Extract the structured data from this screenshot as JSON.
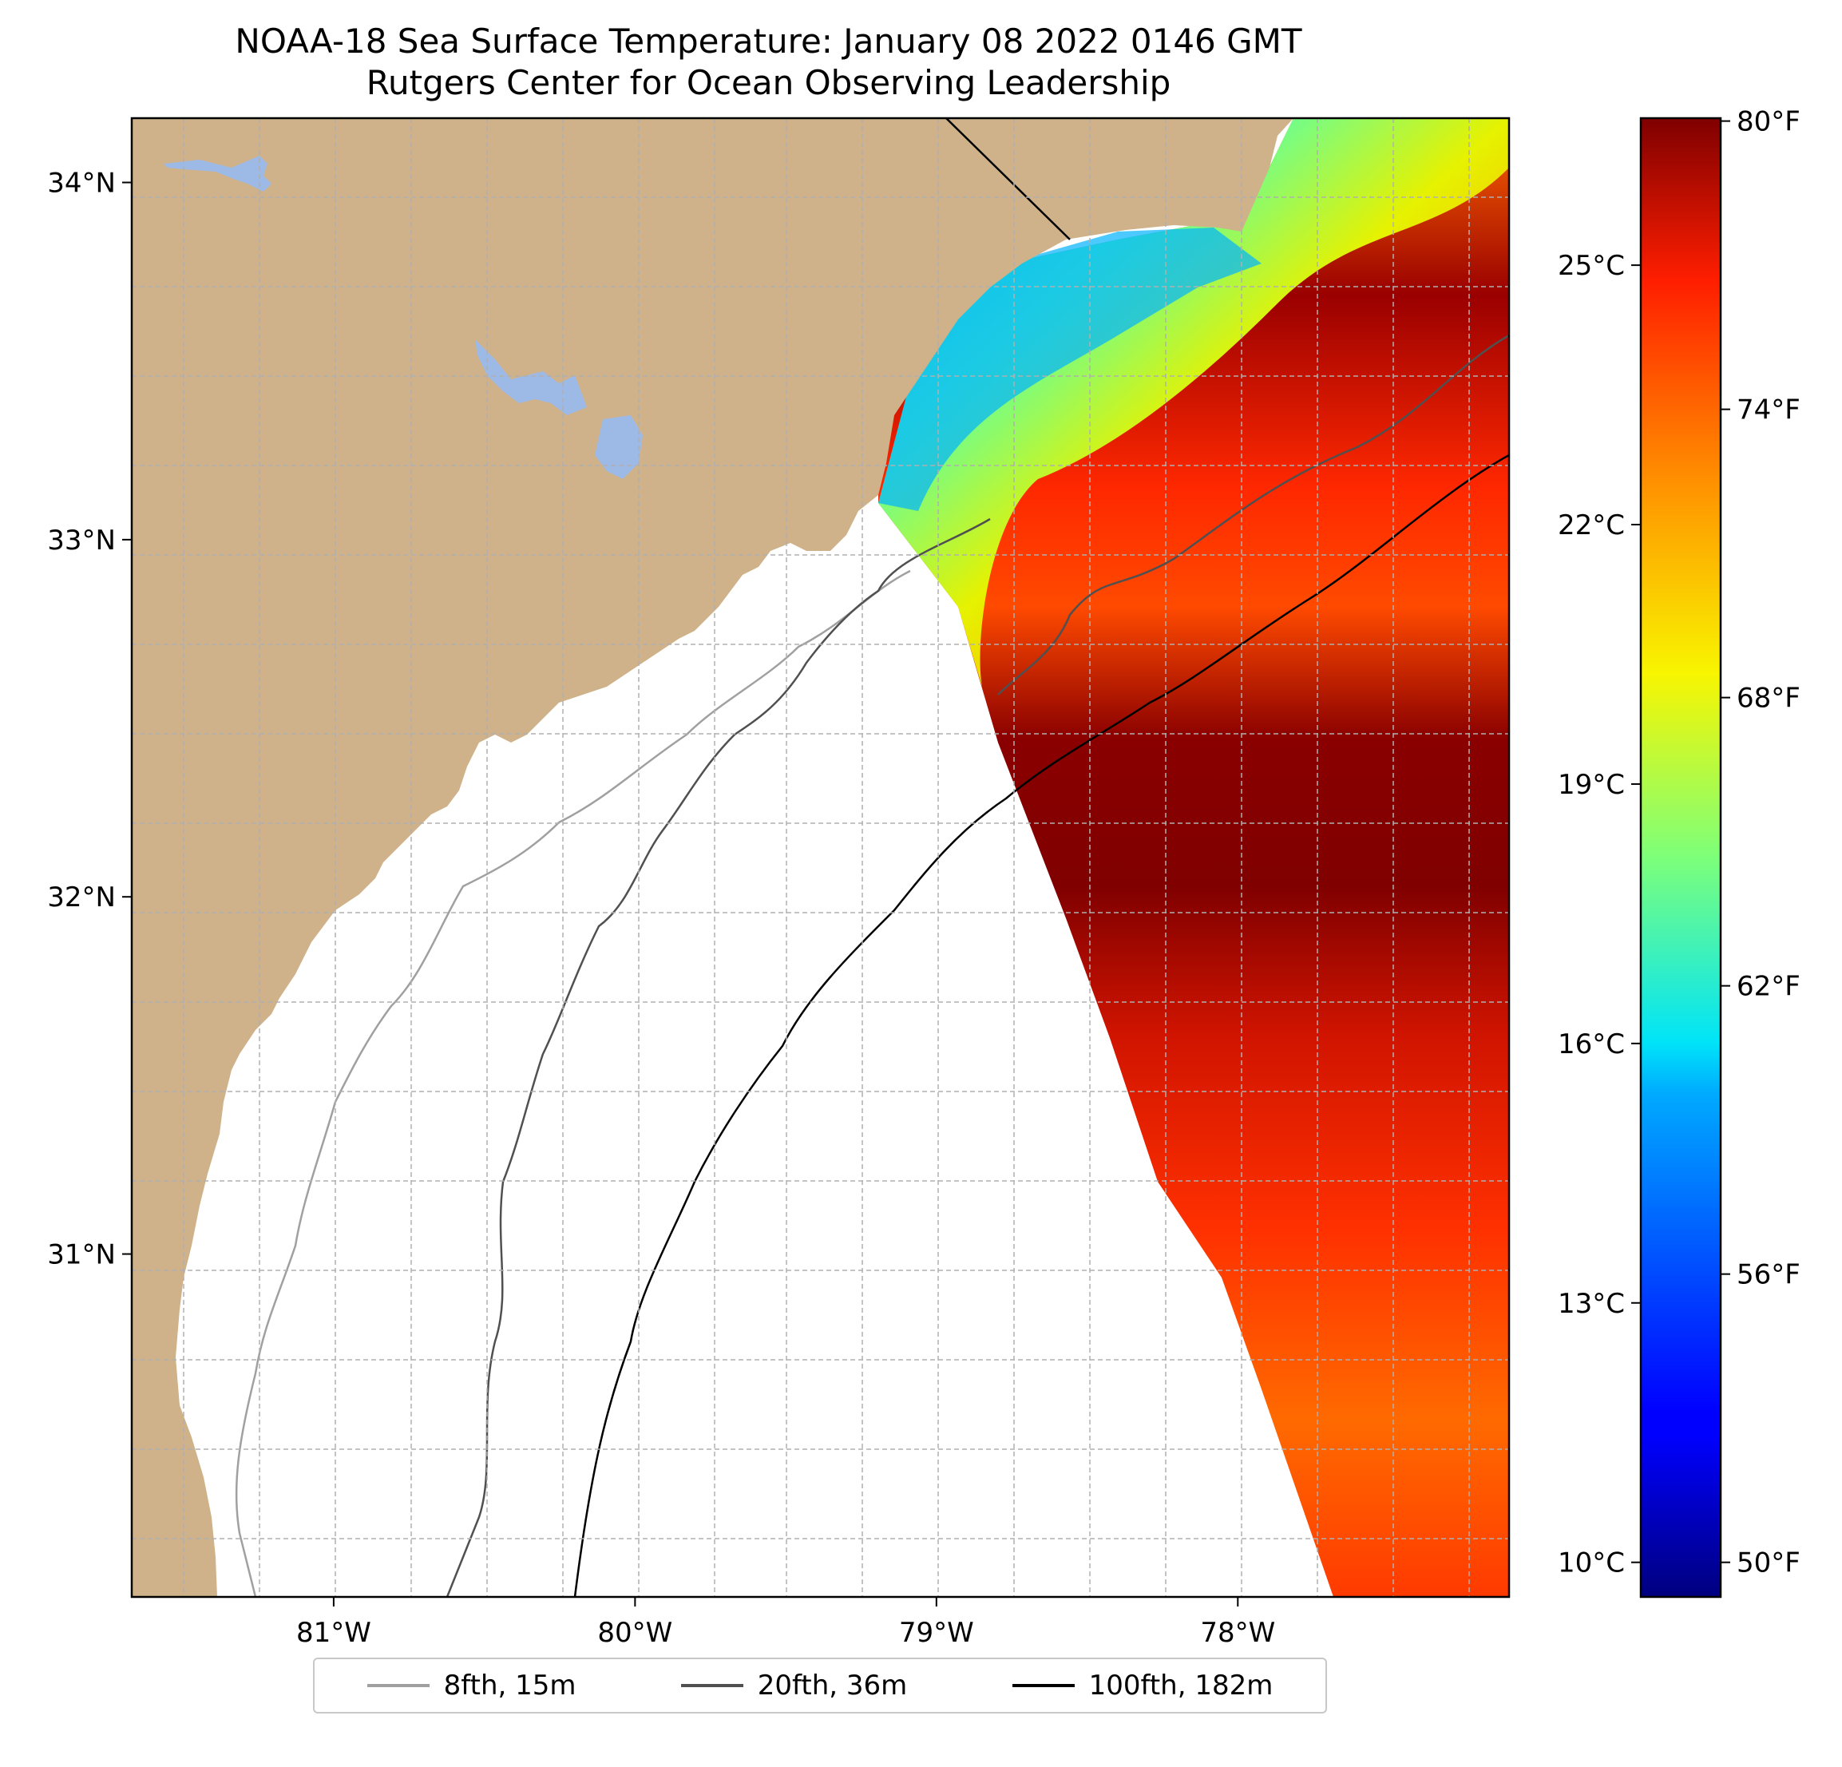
{
  "title": {
    "line1": "NOAA-18 Sea Surface Temperature: January 08 2022 0146 GMT",
    "line2": "Rutgers Center for Ocean Observing Leadership"
  },
  "map": {
    "lon_range": [
      -81.67,
      -77.1
    ],
    "lat_range": [
      30.04,
      34.18
    ],
    "lon_ticks": [
      -81,
      -80,
      -79,
      -78
    ],
    "lon_tick_labels": [
      "81°W",
      "80°W",
      "79°W",
      "78°W"
    ],
    "lat_ticks": [
      31,
      32,
      33,
      34
    ],
    "lat_tick_labels": [
      "31°N",
      "32°N",
      "33°N",
      "34°N"
    ],
    "gridlines": "dashed every 0.25°",
    "colors": {
      "land": "#cfb28a",
      "lakes": "#9db9e6",
      "ocean_no_data": "#ffffff",
      "grid": "#b0b0b0"
    }
  },
  "colorbar": {
    "colormap": "jet",
    "range_c": [
      9.6,
      26.7
    ],
    "celsius_ticks": [
      10,
      13,
      16,
      19,
      22,
      25
    ],
    "celsius_labels": [
      "10°C",
      "13°C",
      "16°C",
      "19°C",
      "22°C",
      "25°C"
    ],
    "fahrenheit_ticks": [
      50,
      56,
      62,
      68,
      74,
      80
    ],
    "fahrenheit_labels": [
      "50°F",
      "56°F",
      "62°F",
      "68°F",
      "74°F",
      "80°F"
    ]
  },
  "legend": {
    "items": [
      {
        "label": "8fth, 15m",
        "color": "#a0a0a0"
      },
      {
        "label": "20fth, 36m",
        "color": "#505050"
      },
      {
        "label": "100fth, 182m",
        "color": "#000000"
      }
    ]
  }
}
